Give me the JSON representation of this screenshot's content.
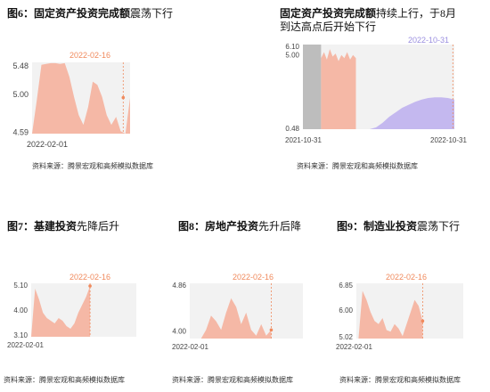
{
  "panels": [
    {
      "title_bold": "图6：固定资产投资完成额",
      "title_rest": "震荡下行",
      "source": "资料来源：腾景宏观和高频模拟数据库",
      "chart_data": {
        "type": "area",
        "x_start_label": "2022-02-01",
        "marker_label": "2022-02-16",
        "yticks": [
          "5.48",
          "5.00",
          "4.59"
        ],
        "ylim": [
          4.59,
          5.48
        ],
        "series": [
          {
            "color": "#f5b8a6",
            "values": [
              4.59,
              5.0,
              5.45,
              5.46,
              5.47,
              5.47,
              5.46,
              5.47,
              5.3,
              5.05,
              4.82,
              4.7,
              4.92,
              5.24,
              5.2,
              5.05,
              4.82,
              4.7,
              4.8,
              4.62,
              4.59,
              5.04
            ]
          }
        ]
      }
    },
    {
      "title_bold": "固定资产投资完成额",
      "title_rest": "持续上行，于8月到达高点后开始下行",
      "source": "资料来源：腾景宏观和高频模拟数据库",
      "chart_data": {
        "type": "area",
        "x_start_label": "2021-10-31",
        "x_end_label": "2022-10-31",
        "marker_label": "2022-10-31",
        "yticks": [
          "6.10",
          "5.00",
          "0.48"
        ],
        "ylim": [
          0.48,
          6.1
        ],
        "series": [
          {
            "color": "#bdbdbd",
            "values": [
              6.1,
              6.1,
              6.1,
              6.1,
              6.1,
              6.1,
              6.1
            ]
          },
          {
            "color": "#f5b8a6",
            "values": [
              5.2,
              5.6,
              5.1,
              5.8,
              5.3,
              5.5,
              5.0,
              5.4,
              5.2,
              5.6,
              5.1,
              5.4,
              5.2
            ]
          },
          {
            "color": "#c4b8ef",
            "values": [
              0.48,
              0.6,
              0.9,
              1.3,
              1.6,
              1.9,
              2.1,
              2.3,
              2.45,
              2.55,
              2.6,
              2.6,
              2.55,
              2.45
            ]
          }
        ]
      }
    },
    {
      "title_bold": "图7：基建投资",
      "title_rest": "先降后升",
      "source": "资料来源：腾景宏观和高频模拟数据库",
      "chart_data": {
        "type": "area",
        "x_start_label": "2022-02-01",
        "marker_label": "2022-02-16",
        "yticks": [
          "5.10",
          "4.00",
          "3.10"
        ],
        "ylim": [
          3.1,
          5.1
        ],
        "series": [
          {
            "color": "#f5b8a6",
            "values": [
              3.1,
              4.9,
              4.5,
              4.0,
              3.8,
              3.7,
              3.6,
              3.8,
              3.7,
              3.5,
              3.4,
              3.6,
              4.0,
              4.3,
              4.6,
              5.0
            ]
          }
        ]
      }
    },
    {
      "title_bold": "图8：房地产投资",
      "title_rest": "先升后降",
      "source": "资料来源：腾景宏观和高频模拟数据库",
      "chart_data": {
        "type": "area",
        "x_start_label": "2022-02-01",
        "marker_label": "2022-02-16",
        "yticks": [
          "4.86",
          "4.00"
        ],
        "ylim": [
          3.9,
          4.86
        ],
        "series": [
          {
            "color": "#f5b8a6",
            "values": [
              3.9,
              4.05,
              4.3,
              4.2,
              4.05,
              4.35,
              4.6,
              4.45,
              4.15,
              4.35,
              4.05,
              3.95,
              4.15,
              3.95,
              4.05
            ]
          }
        ]
      }
    },
    {
      "title_bold": "图9：制造业投资",
      "title_rest": "震荡下行",
      "source": "资料来源：腾景宏观和高频模拟数据库",
      "chart_data": {
        "type": "area",
        "x_start_label": "2022-02-01",
        "marker_label": "2022-02-16",
        "yticks": [
          "6.85",
          "6.00",
          "5.02"
        ],
        "ylim": [
          5.02,
          6.85
        ],
        "series": [
          {
            "color": "#f5b8a6",
            "values": [
              5.02,
              6.6,
              6.3,
              5.9,
              5.6,
              5.5,
              5.7,
              5.3,
              5.25,
              5.5,
              5.35,
              5.1,
              5.5,
              5.9,
              6.3,
              6.1,
              5.6
            ]
          }
        ]
      }
    }
  ],
  "colors": {
    "marker": "#f08a5d",
    "marker_alt": "#9b8fe0",
    "background": "#f2f2f2"
  }
}
